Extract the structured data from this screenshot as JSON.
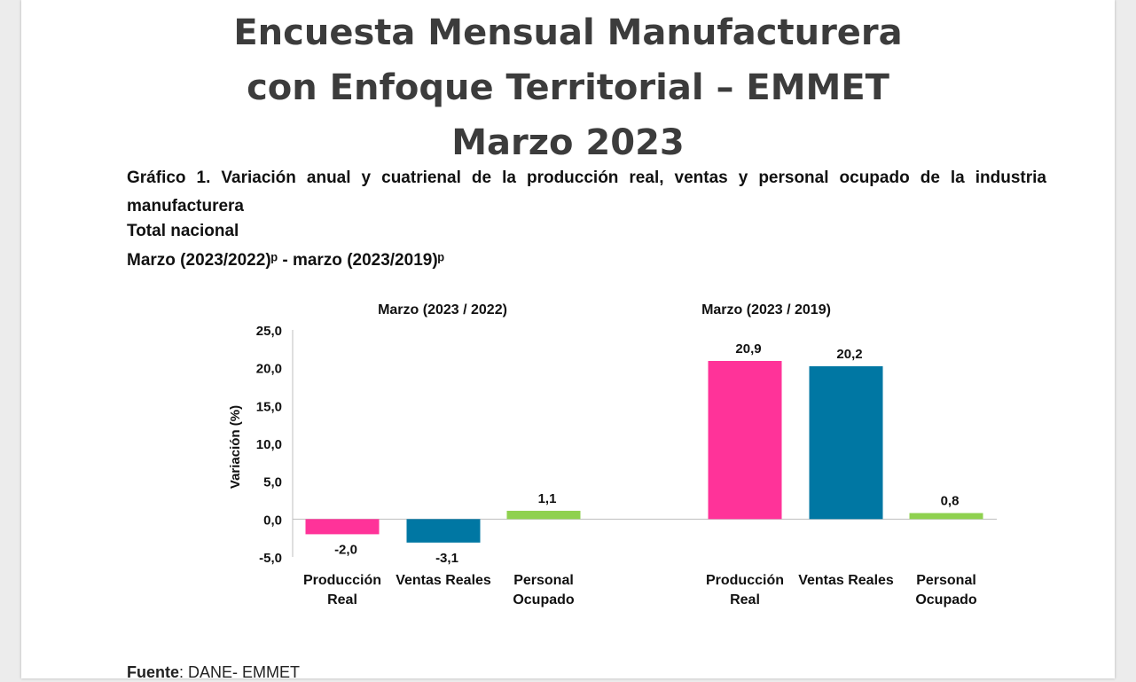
{
  "report": {
    "title_lines": [
      "Encuesta Mensual Manufacturera",
      "con Enfoque Territorial – EMMET",
      "Marzo 2023"
    ],
    "caption_line1": "Gráfico 1. Variación anual y cuatrienal de la producción real, ventas y personal ocupado de la industria manufacturera",
    "caption_line2": "Total nacional",
    "caption_line3": "Marzo (2023/2022)ᵖ -  marzo (2023/2019)ᵖ",
    "source_label": "Fuente",
    "source_text": ": DANE- EMMET"
  },
  "chart_data": {
    "type": "bar",
    "ylabel": "Variación (%)",
    "ylim": [
      -5,
      25
    ],
    "yticks": [
      25,
      20,
      15,
      10,
      5,
      0,
      -5
    ],
    "ytick_labels": [
      "25,0",
      "20,0",
      "15,0",
      "10,0",
      "5,0",
      "0,0",
      "-5,0"
    ],
    "grid": false,
    "groups": [
      {
        "title": "Marzo (2023 / 2022)",
        "categories": [
          "Producción Real",
          "Ventas Reales",
          "Personal Ocupado"
        ],
        "values": [
          -2.0,
          -3.1,
          1.1
        ],
        "labels": [
          "-2,0",
          "-3,1",
          "1,1"
        ]
      },
      {
        "title": "Marzo (2023 / 2019)",
        "categories": [
          "Producción Real",
          "Ventas Reales",
          "Personal Ocupado"
        ],
        "values": [
          20.9,
          20.2,
          0.8
        ],
        "labels": [
          "20,9",
          "20,2",
          "0,8"
        ]
      }
    ],
    "colors": [
      "#ff3399",
      "#0077a3",
      "#8fd14f"
    ]
  }
}
